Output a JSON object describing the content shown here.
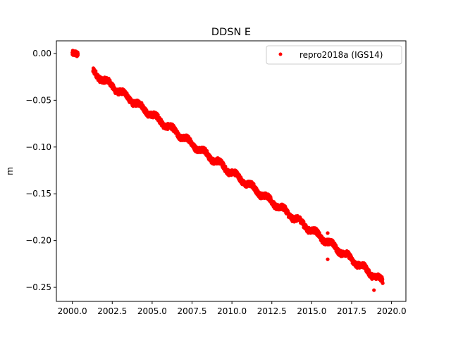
{
  "chart_data": {
    "type": "scatter",
    "title": "DDSN E",
    "xlabel": "",
    "ylabel": "m",
    "xlim": [
      1999.0,
      2020.9
    ],
    "ylim": [
      -0.265,
      0.0135
    ],
    "x_ticks": [
      2000.0,
      2002.5,
      2005.0,
      2007.5,
      2010.0,
      2012.5,
      2015.0,
      2017.5,
      2020.0
    ],
    "x_tick_labels": [
      "2000.0",
      "2002.5",
      "2005.0",
      "2007.5",
      "2010.0",
      "2012.5",
      "2015.0",
      "2017.5",
      "2020.0"
    ],
    "y_ticks": [
      0.0,
      -0.05,
      -0.1,
      -0.15,
      -0.2,
      -0.25
    ],
    "y_tick_labels": [
      "0.00",
      "−0.05",
      "−0.10",
      "−0.15",
      "−0.20",
      "−0.25"
    ],
    "grid": false,
    "legend_position": "top-right",
    "series": [
      {
        "name": "repro2018a (IGS14)",
        "color": "#ff0000",
        "marker": "dot",
        "segments": [
          {
            "x_start": 2000.0,
            "x_end": 2000.35,
            "y_start": 0.0,
            "y_end": -0.004
          },
          {
            "x_start": 2001.3,
            "x_end": 2019.45,
            "y_start": -0.02,
            "y_end": -0.244
          }
        ],
        "outliers": [
          {
            "x": 2016.0,
            "y": -0.192
          },
          {
            "x": 2016.0,
            "y": -0.22
          },
          {
            "x": 2018.9,
            "y": -0.253
          }
        ]
      }
    ]
  }
}
